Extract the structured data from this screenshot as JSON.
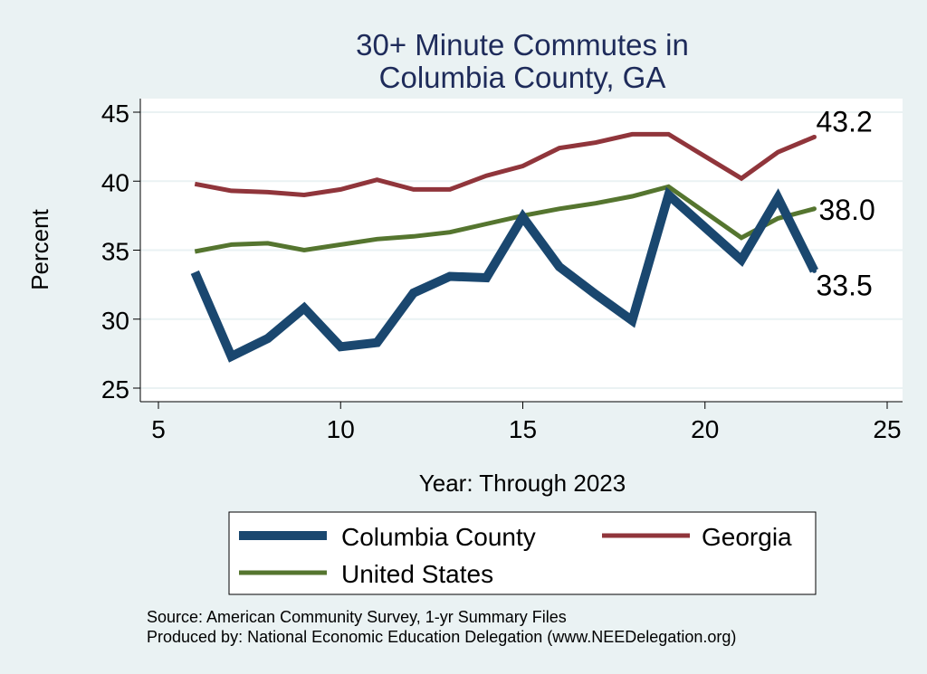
{
  "chart_data": {
    "type": "line",
    "title": [
      "30+ Minute Commutes in",
      "Columbia County, GA"
    ],
    "xlabel": "Year: Through 2023",
    "ylabel": "Percent",
    "xlim": [
      5,
      25
    ],
    "ylim": [
      24,
      46
    ],
    "xticks": [
      5,
      10,
      15,
      20,
      25
    ],
    "yticks": [
      25,
      30,
      35,
      40,
      45
    ],
    "grid": true,
    "legend_position": "bottom",
    "x": [
      6,
      7,
      8,
      9,
      10,
      11,
      12,
      13,
      14,
      15,
      16,
      17,
      18,
      19,
      21,
      22,
      23
    ],
    "series": [
      {
        "name": "Columbia County",
        "color": "#1a476f",
        "values": [
          33.4,
          27.3,
          28.6,
          30.8,
          28.0,
          28.3,
          31.9,
          33.1,
          33.0,
          37.4,
          33.8,
          31.8,
          29.9,
          39.0,
          34.3,
          38.8,
          33.5
        ],
        "end_label": "33.5"
      },
      {
        "name": "Georgia",
        "color": "#90353b",
        "values": [
          39.8,
          39.3,
          39.2,
          39.0,
          39.4,
          40.1,
          39.4,
          39.4,
          40.4,
          41.1,
          42.4,
          42.8,
          43.4,
          43.4,
          40.2,
          42.1,
          43.2
        ],
        "end_label": "43.2"
      },
      {
        "name": "United States",
        "color": "#55752f",
        "values": [
          34.9,
          35.4,
          35.5,
          35.0,
          35.4,
          35.8,
          36.0,
          36.3,
          36.9,
          37.5,
          38.0,
          38.4,
          38.9,
          39.6,
          35.9,
          37.3,
          38.0
        ],
        "end_label": "38.0"
      }
    ],
    "legend": [
      {
        "name": "Columbia County",
        "series_index": 0
      },
      {
        "name": "Georgia",
        "series_index": 1
      },
      {
        "name": "United States",
        "series_index": 2
      }
    ],
    "notes": [
      "Source: American Community Survey, 1-yr Summary Files",
      "Produced by: National Economic Education Delegation (www.NEEDelegation.org)"
    ]
  }
}
